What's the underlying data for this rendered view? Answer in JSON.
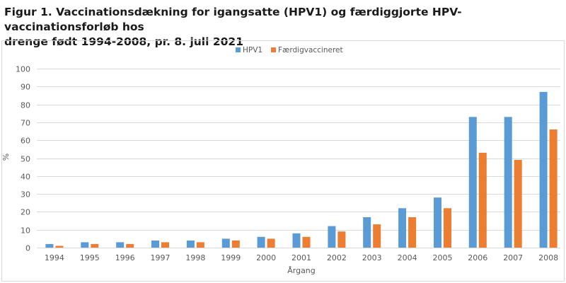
{
  "title_line1": "Figur 1. Vaccinationsdækning for igangsatte (HPV1) og færdiggjorte HPV-vaccinationsforløb hos",
  "title_line2": "drenge født 1994-2008, pr. 8. juli 2021",
  "colors": {
    "HPV1": "#5b9bd5",
    "Færdigvaccineret": "#ed7d31",
    "grid": "#d9d9d9",
    "text": "#595959"
  },
  "chart_data": {
    "type": "bar",
    "title": "Figur 1. Vaccinationsdækning for igangsatte (HPV1) og færdiggjorte HPV-vaccinationsforløb hos drenge født 1994-2008, pr. 8. juli 2021",
    "xlabel": "Årgang",
    "ylabel": "%",
    "ylim": [
      0,
      100
    ],
    "yticks": [
      0,
      10,
      20,
      30,
      40,
      50,
      60,
      70,
      80,
      90,
      100
    ],
    "grid": true,
    "legend_position": "top-center",
    "categories": [
      "1994",
      "1995",
      "1996",
      "1997",
      "1998",
      "1999",
      "2000",
      "2001",
      "2002",
      "2003",
      "2004",
      "2005",
      "2006",
      "2007",
      "2008"
    ],
    "series": [
      {
        "name": "HPV1",
        "values": [
          2,
          3,
          3,
          4,
          4,
          5,
          6,
          8,
          12,
          17,
          22,
          28,
          73,
          73,
          87
        ]
      },
      {
        "name": "Færdigvaccineret",
        "values": [
          1,
          2,
          2,
          3,
          3,
          4,
          5,
          6,
          9,
          13,
          17,
          22,
          53,
          49,
          66
        ]
      }
    ]
  }
}
